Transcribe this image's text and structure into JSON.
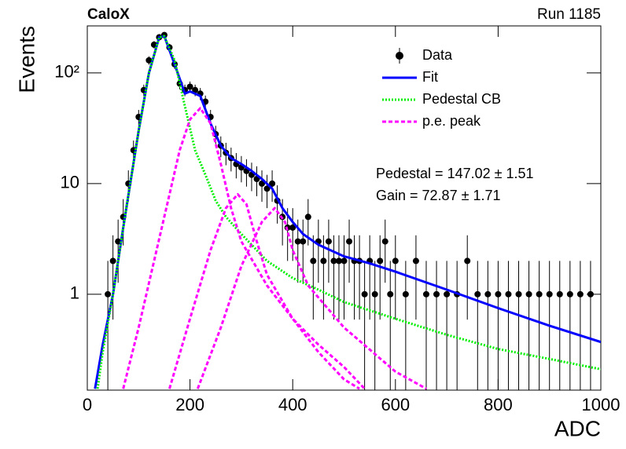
{
  "chart_data": {
    "type": "line",
    "title": "CaloX",
    "subtitle": "Run 1185",
    "x_label": "ADC",
    "y_label": "Events",
    "log_y": true,
    "legend": "upper right",
    "annotations": [
      "Pedestal = 147.02 ± 1.51",
      "Gain = 72.87 ± 1.71"
    ],
    "xlim": [
      0,
      1000
    ],
    "xticks": [
      0,
      200,
      400,
      600,
      800,
      1000
    ],
    "ylim": [
      0.136,
      266
    ],
    "yticks": [
      1,
      10,
      {
        "value": 100,
        "label": "10²"
      }
    ],
    "series": [
      {
        "name": "Data",
        "color": "#000000",
        "style": "points",
        "x": [
          40,
          50,
          60,
          70,
          80,
          90,
          100,
          110,
          120,
          130,
          140,
          150,
          160,
          170,
          180,
          190,
          200,
          210,
          220,
          230,
          240,
          250,
          260,
          270,
          280,
          290,
          300,
          310,
          320,
          330,
          340,
          350,
          360,
          370,
          380,
          390,
          400,
          410,
          420,
          430,
          440,
          450,
          460,
          470,
          480,
          490,
          500,
          510,
          520,
          530,
          540,
          550,
          560,
          570,
          580,
          590,
          600,
          620,
          640,
          660,
          680,
          700,
          720,
          740,
          760,
          780,
          800,
          820,
          840,
          860,
          880,
          900,
          920,
          940,
          960,
          980
        ],
        "values": [
          1,
          2,
          3,
          5,
          10,
          20,
          40,
          70,
          130,
          180,
          210,
          220,
          170,
          120,
          80,
          70,
          75,
          70,
          65,
          55,
          40,
          28,
          22,
          19,
          17,
          15,
          14,
          13,
          12,
          11,
          10,
          9,
          10,
          7,
          5,
          4,
          4,
          3,
          3,
          5,
          2,
          3,
          2,
          3,
          2,
          2,
          2,
          3,
          2,
          2,
          1,
          2,
          1,
          2,
          3,
          1,
          2,
          1,
          2,
          1,
          1,
          1,
          1,
          2,
          1,
          1,
          1,
          1,
          1,
          1,
          1,
          1,
          1,
          1,
          1,
          1
        ],
        "errors": [
          1,
          1.41,
          1.73,
          2.24,
          3.16,
          4.47,
          6.32,
          8.37,
          11.4,
          13.4,
          14.5,
          14.8,
          13.0,
          11.0,
          8.94,
          8.37,
          8.66,
          8.37,
          8.06,
          7.42,
          6.32,
          5.29,
          4.69,
          4.36,
          4.12,
          3.87,
          3.74,
          3.61,
          3.46,
          3.32,
          3.16,
          3,
          3.16,
          2.65,
          2.24,
          2,
          2,
          1.73,
          1.73,
          2.24,
          1.41,
          1.73,
          1.41,
          1.73,
          1.41,
          1.41,
          1.41,
          1.73,
          1.41,
          1.41,
          1,
          1.41,
          1,
          1.41,
          1.73,
          1,
          1.41,
          1,
          1.41,
          1,
          1,
          1,
          1,
          1.41,
          1,
          1,
          1,
          1,
          1,
          1,
          1,
          1,
          1,
          1,
          1,
          1
        ]
      },
      {
        "name": "Fit",
        "color": "#0000ff",
        "style": "solid",
        "x": [
          15,
          30,
          50,
          70,
          100,
          120,
          140,
          150,
          170,
          190,
          200,
          220,
          240,
          260,
          280,
          300,
          320,
          340,
          360,
          380,
          400,
          420,
          450,
          500,
          550,
          600,
          700,
          800,
          900,
          1000
        ],
        "values": [
          0.14,
          0.35,
          1,
          4,
          30,
          100,
          210,
          215,
          120,
          65,
          68,
          62,
          35,
          22,
          17,
          15,
          13,
          11,
          9,
          6,
          4.5,
          3.5,
          2.8,
          2.2,
          1.9,
          1.6,
          1.1,
          0.75,
          0.52,
          0.37
        ]
      },
      {
        "name": "Pedestal CB",
        "color": "#00ee00",
        "style": "dotted",
        "x": [
          20,
          30,
          50,
          70,
          100,
          120,
          140,
          150,
          170,
          190,
          210,
          230,
          250,
          270,
          300,
          350,
          400,
          450,
          500,
          600,
          700,
          800,
          900,
          1000
        ],
        "values": [
          0.14,
          0.3,
          1,
          4,
          30,
          100,
          210,
          215,
          130,
          50,
          20,
          12,
          7,
          5,
          3.5,
          2,
          1.4,
          1.1,
          0.85,
          0.6,
          0.43,
          0.32,
          0.26,
          0.21
        ]
      },
      {
        "name": "p.e. peak",
        "color": "#ff00ff",
        "style": "dashed",
        "x": [
          70,
          100,
          150,
          180,
          200,
          220,
          240,
          260,
          280,
          300,
          350,
          400,
          450,
          500,
          540,
          540,
          160,
          200,
          240,
          270,
          293,
          310,
          330,
          350,
          400,
          450,
          500,
          530,
          530,
          215,
          260,
          300,
          340,
          365,
          385,
          400,
          430,
          500,
          600,
          660
        ],
        "values": [
          0.14,
          0.5,
          5,
          20,
          38,
          48,
          35,
          15,
          6,
          3,
          1.2,
          0.6,
          0.35,
          0.22,
          0.14,
          null,
          0.14,
          0.6,
          2.5,
          6,
          8,
          6.5,
          3,
          1.5,
          0.6,
          0.3,
          0.17,
          0.14,
          null,
          0.14,
          0.5,
          1.8,
          4.5,
          6,
          4.5,
          2.5,
          1.2,
          0.5,
          0.2,
          0.14
        ]
      }
    ]
  }
}
